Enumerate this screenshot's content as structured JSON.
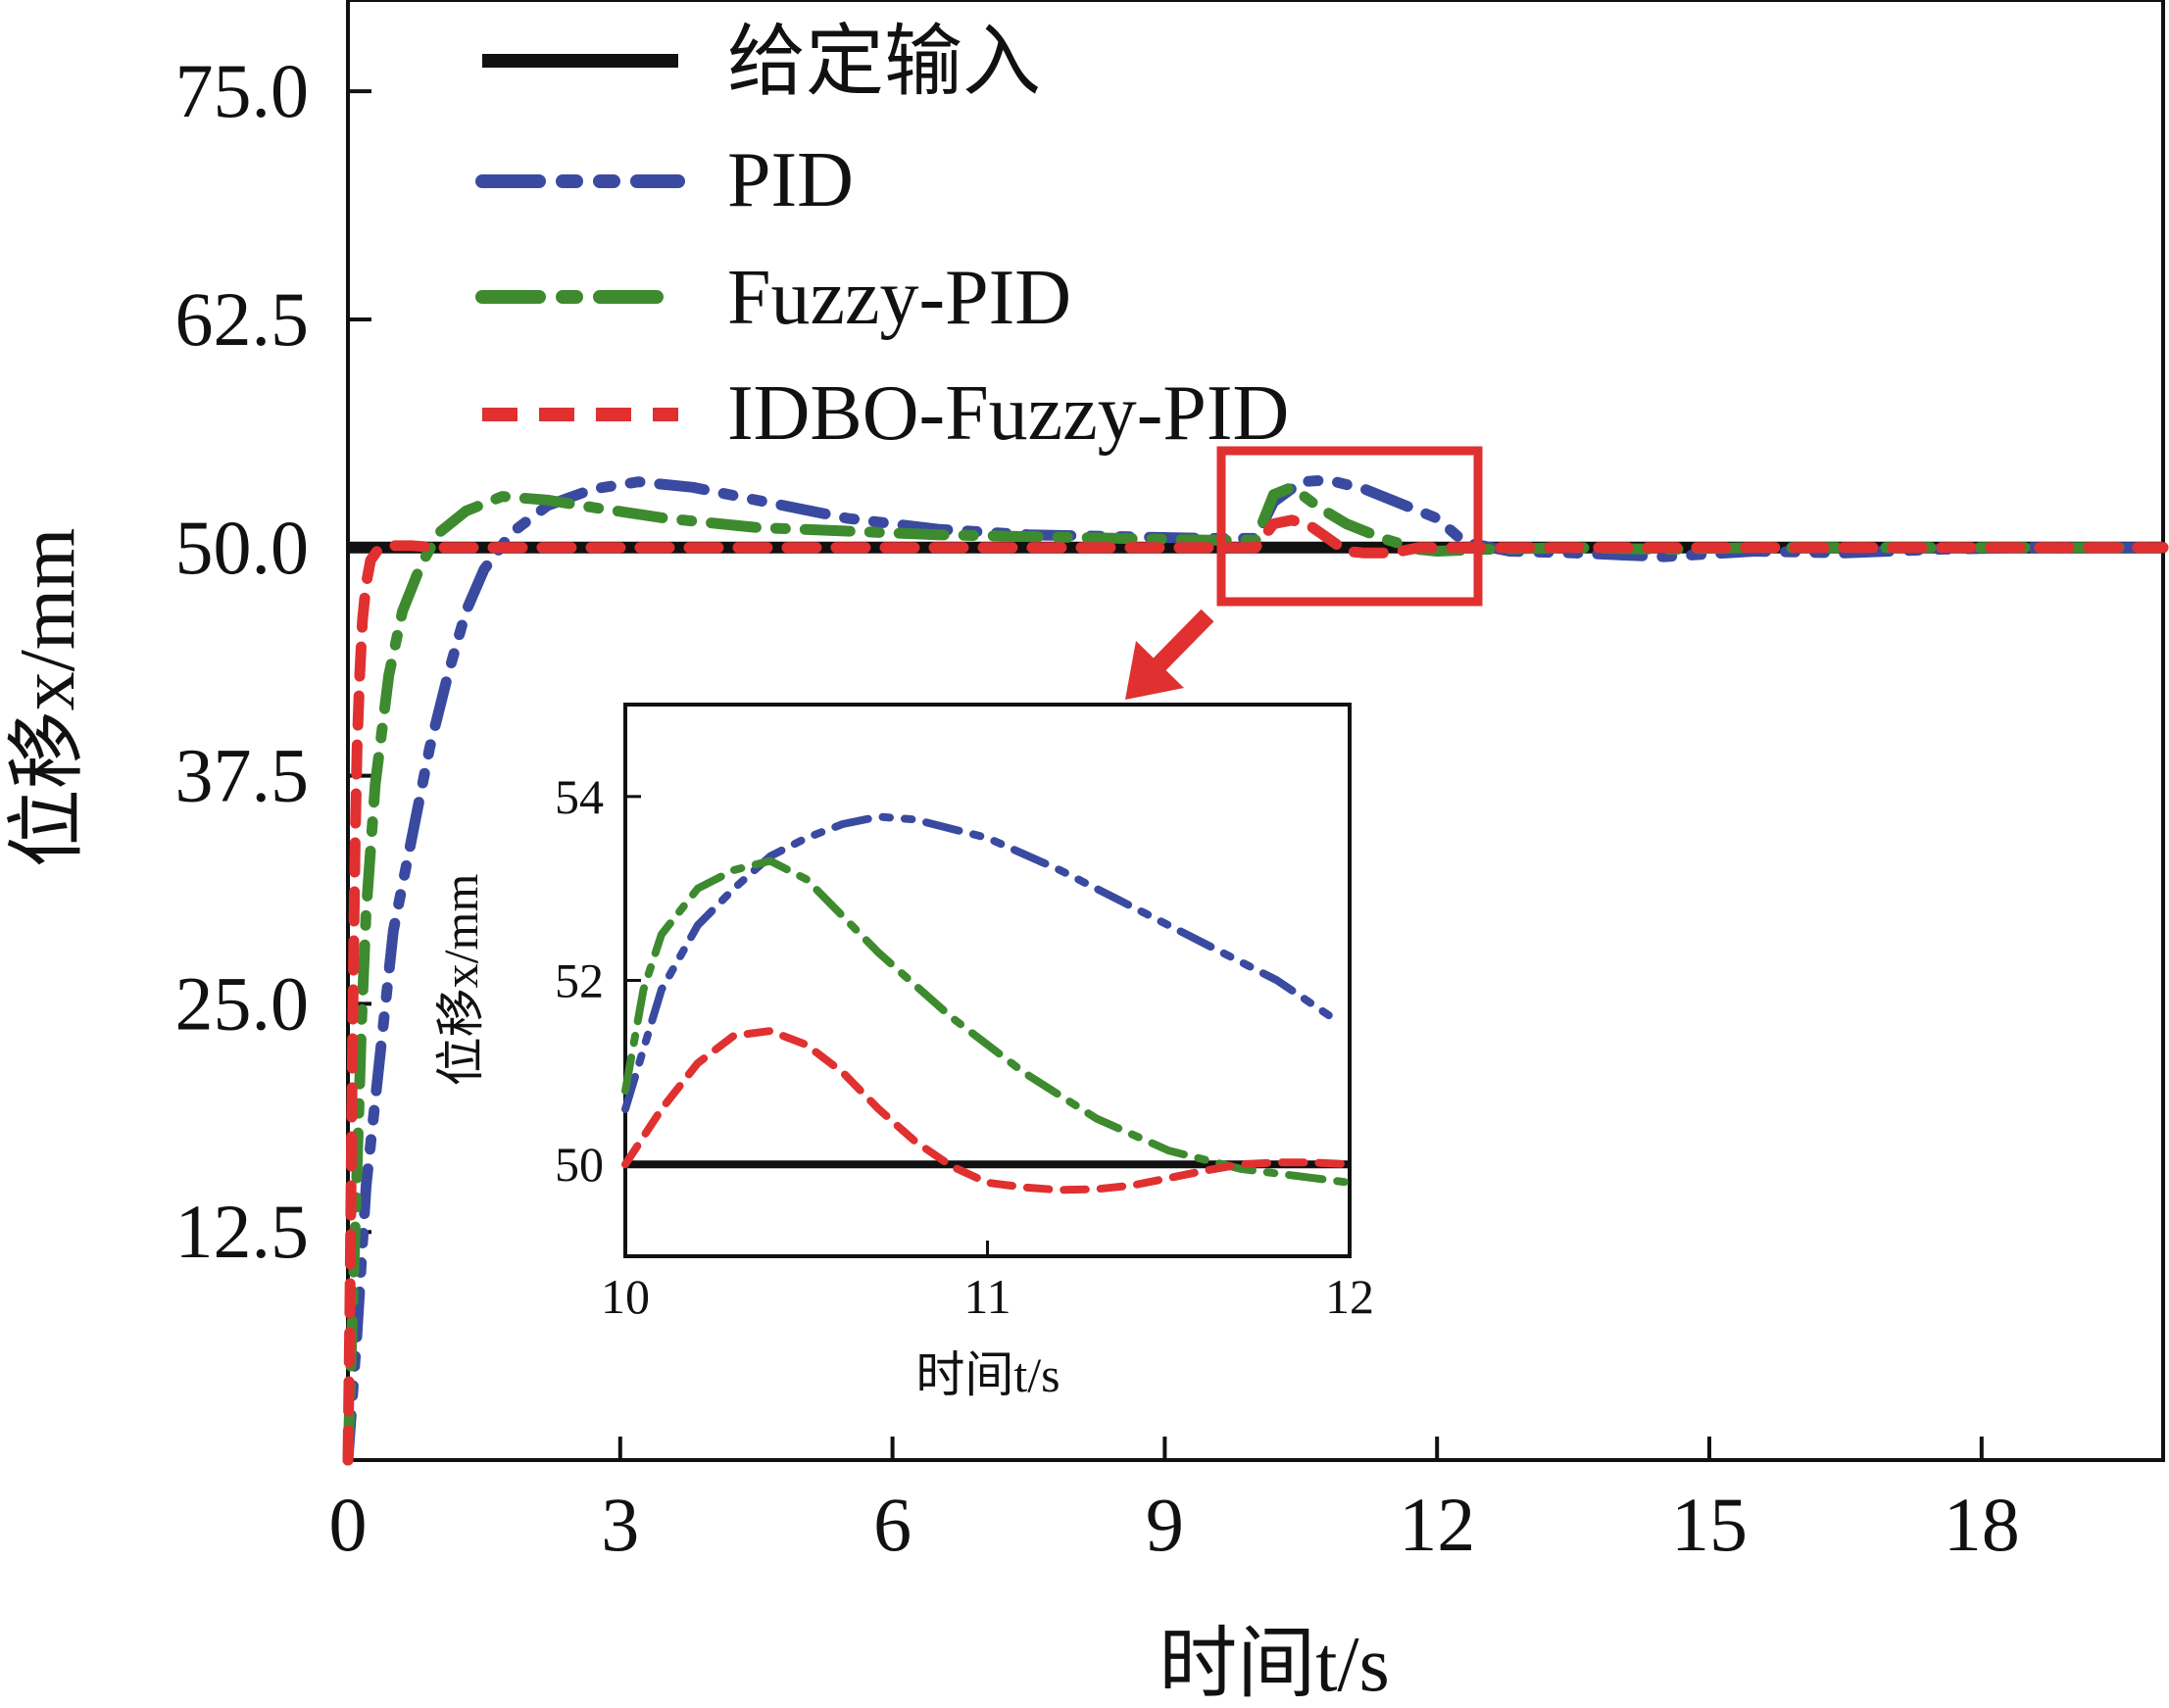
{
  "chart_data": [
    {
      "type": "line",
      "xlabel": "时间t/s",
      "ylabel": "位移x/mm",
      "xlim": [
        0,
        20
      ],
      "ylim": [
        0,
        80
      ],
      "xticks": [
        "0",
        "3",
        "6",
        "9",
        "12",
        "15",
        "18"
      ],
      "yticks": [
        "12.5",
        "25.0",
        "37.5",
        "50.0",
        "62.5",
        "75.0"
      ],
      "grid": false,
      "legend_position": "top-center",
      "series": [
        {
          "name": "给定输入",
          "color": "#111111",
          "style": "solid",
          "x": [
            0,
            20
          ],
          "y": [
            50,
            50
          ]
        },
        {
          "name": "PID",
          "color": "#3a4aa0",
          "style": "dash-dot-dot",
          "x": [
            0,
            0.1,
            0.2,
            0.35,
            0.5,
            0.7,
            0.9,
            1.1,
            1.3,
            1.5,
            1.8,
            2.2,
            2.7,
            3.2,
            3.8,
            4.5,
            5.5,
            6.5,
            7.5,
            8.5,
            9.5,
            10.0,
            10.2,
            10.5,
            10.8,
            11.2,
            11.6,
            12.0,
            12.3,
            12.8,
            13.5,
            14.5,
            15.5,
            16.5,
            17.5,
            18.5,
            20
          ],
          "y": [
            0,
            7,
            15,
            22,
            29,
            34,
            39,
            43,
            46.5,
            48.8,
            50.8,
            52.3,
            53.2,
            53.6,
            53.3,
            52.6,
            51.6,
            51.0,
            50.7,
            50.6,
            50.5,
            50.5,
            52.5,
            53.6,
            53.7,
            53.2,
            52.4,
            51.6,
            50.3,
            49.8,
            49.7,
            49.5,
            49.8,
            49.7,
            49.9,
            50.0,
            50.0
          ]
        },
        {
          "name": "Fuzzy-PID",
          "color": "#3e8a2f",
          "style": "dash-dot",
          "x": [
            0,
            0.05,
            0.1,
            0.15,
            0.2,
            0.3,
            0.45,
            0.6,
            0.8,
            1.0,
            1.3,
            1.7,
            2.2,
            2.7,
            3.5,
            4.5,
            5.5,
            6.5,
            7.5,
            8.5,
            9.5,
            10.0,
            10.2,
            10.4,
            10.7,
            11.0,
            11.4,
            11.8,
            12.0,
            12.5,
            13.5,
            14.5,
            15.5,
            16.5,
            17.5,
            18.5,
            20
          ],
          "y": [
            0,
            8,
            16,
            24,
            30,
            37,
            43,
            46.5,
            49,
            50.8,
            52,
            52.8,
            52.6,
            52.2,
            51.6,
            51.1,
            50.9,
            50.7,
            50.6,
            50.5,
            50.4,
            50.4,
            52.9,
            53.3,
            52.2,
            51.3,
            50.5,
            49.9,
            49.8,
            49.9,
            50.0,
            49.9,
            50.0,
            50.0,
            50.0,
            50.0,
            50.0
          ]
        },
        {
          "name": "IDBO-Fuzzy-PID",
          "color": "#e03030",
          "style": "dashed",
          "x": [
            0,
            0.02,
            0.04,
            0.06,
            0.08,
            0.1,
            0.13,
            0.16,
            0.2,
            0.25,
            0.32,
            0.45,
            0.7,
            1.0,
            2.0,
            4.0,
            6.0,
            8.0,
            9.5,
            10.0,
            10.2,
            10.4,
            10.6,
            10.8,
            11.0,
            11.2,
            11.4,
            11.6,
            11.8,
            12.0,
            12.5,
            14.0,
            16.0,
            18.0,
            20
          ],
          "y": [
            0,
            8,
            18,
            27,
            34,
            39,
            43,
            46,
            48,
            49.3,
            49.8,
            50.1,
            50.1,
            50.0,
            50.0,
            50.0,
            50.0,
            50.0,
            50.0,
            50.0,
            51.3,
            51.5,
            51.2,
            50.5,
            49.8,
            49.7,
            49.7,
            49.8,
            50.0,
            50.0,
            50.0,
            50.0,
            50.0,
            50.0,
            50.0
          ]
        }
      ]
    },
    {
      "type": "line",
      "xlabel": "时间t/s",
      "ylabel": "位移x/mm",
      "xlim": [
        10,
        12
      ],
      "ylim": [
        49,
        55
      ],
      "xticks": [
        "10",
        "11",
        "12"
      ],
      "yticks": [
        "50",
        "52",
        "54"
      ],
      "grid": false,
      "series": [
        {
          "name": "给定输入",
          "color": "#111111",
          "style": "solid",
          "x": [
            10,
            12
          ],
          "y": [
            50,
            50
          ]
        },
        {
          "name": "PID",
          "color": "#3a4aa0",
          "style": "dash-dot-dot",
          "x": [
            10.0,
            10.1,
            10.2,
            10.3,
            10.4,
            10.5,
            10.6,
            10.7,
            10.8,
            11.0,
            11.2,
            11.4,
            11.6,
            11.8,
            11.95
          ],
          "y": [
            50.6,
            51.9,
            52.6,
            53.0,
            53.35,
            53.55,
            53.7,
            53.78,
            53.75,
            53.55,
            53.2,
            52.8,
            52.4,
            52.0,
            51.6
          ]
        },
        {
          "name": "Fuzzy-PID",
          "color": "#3e8a2f",
          "style": "dash-dot",
          "x": [
            10.0,
            10.05,
            10.1,
            10.2,
            10.3,
            10.4,
            10.5,
            10.7,
            10.9,
            11.1,
            11.3,
            11.5,
            11.7,
            11.9,
            12.0
          ],
          "y": [
            50.8,
            51.9,
            52.5,
            53.0,
            53.2,
            53.3,
            53.1,
            52.3,
            51.6,
            51.0,
            50.5,
            50.15,
            49.95,
            49.85,
            49.8
          ]
        },
        {
          "name": "IDBO-Fuzzy-PID",
          "color": "#e03030",
          "style": "dashed",
          "x": [
            10.0,
            10.1,
            10.2,
            10.3,
            10.4,
            10.5,
            10.6,
            10.7,
            10.8,
            10.9,
            11.0,
            11.1,
            11.2,
            11.3,
            11.4,
            11.5,
            11.6,
            11.7,
            11.8,
            11.9,
            12.0
          ],
          "y": [
            50.0,
            50.6,
            51.1,
            51.4,
            51.45,
            51.3,
            51.0,
            50.6,
            50.25,
            49.98,
            49.8,
            49.75,
            49.72,
            49.73,
            49.77,
            49.85,
            49.93,
            50.0,
            50.02,
            50.02,
            50.0
          ]
        }
      ]
    }
  ]
}
